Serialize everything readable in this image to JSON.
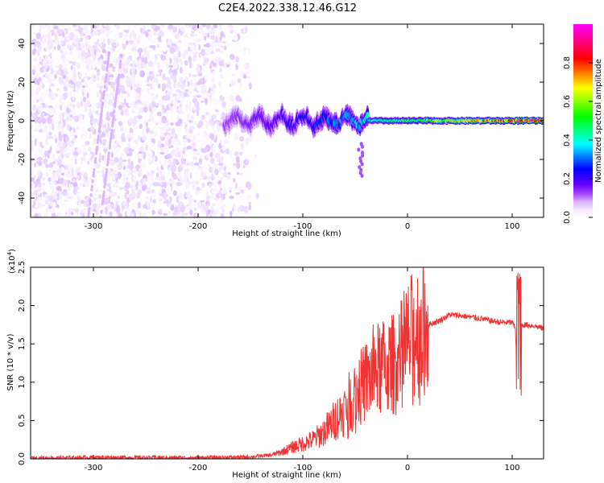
{
  "title": "C2E4.2022.338.12.46.G12",
  "chart_data": [
    {
      "type": "heatmap",
      "xlabel": "Height of straight line (km)",
      "ylabel": "Frequency (Hz)",
      "xlim": [
        -360,
        130
      ],
      "ylim": [
        -50,
        50
      ],
      "x_ticks": [
        -300,
        -200,
        -100,
        0,
        100
      ],
      "y_ticks": [
        -40,
        -20,
        0,
        20,
        40
      ],
      "colorbar": {
        "label": "Normalized spectral amplitude",
        "range": [
          0.0,
          1.0
        ],
        "ticks": [
          0.0,
          0.2,
          0.4,
          0.6,
          0.8
        ],
        "colors": [
          "#ffffff",
          "#f5e8ff",
          "#d9b3ff",
          "#a64dff",
          "#6600ff",
          "#0000ff",
          "#00ffff",
          "#00ff00",
          "#ffff00",
          "#ff0000",
          "#ff00ff"
        ]
      },
      "features": [
        {
          "name": "noise",
          "x_range": [
            -360,
            -150
          ],
          "freq_range": [
            -50,
            50
          ],
          "amplitude": 0.1
        },
        {
          "name": "streak",
          "x_range": [
            -305,
            -285
          ],
          "freq_range": [
            -50,
            35
          ],
          "amplitude": 0.2
        },
        {
          "name": "signal",
          "x_range": [
            -175,
            130
          ],
          "center_freq_hz": 0,
          "width_hz": 8,
          "amplitude_range": [
            0.3,
            1.0
          ]
        }
      ]
    },
    {
      "type": "line",
      "xlabel": "Height of straight line (km)",
      "ylabel": "SNR (10 * v/v)",
      "y_multiplier_label": "(x10",
      "y_multiplier_exp": "4",
      "y_multiplier_close": ")",
      "xlim": [
        -360,
        130
      ],
      "ylim": [
        0,
        25000
      ],
      "x_ticks": [
        -300,
        -200,
        -100,
        0,
        100
      ],
      "y_tick_labels": [
        "0.0",
        "0.5",
        "1.0",
        "1.5",
        "2.0",
        "2.5"
      ],
      "series": [
        {
          "color": "#ee3333",
          "x": [
            -360,
            -300,
            -200,
            -150,
            -130,
            -120,
            -110,
            -100,
            -90,
            -80,
            -70,
            -60,
            -50,
            -40,
            -30,
            -20,
            -10,
            0,
            10,
            20,
            30,
            40,
            50,
            60,
            70,
            80,
            90,
            100,
            103,
            106,
            108,
            110,
            120,
            130
          ],
          "y": [
            100,
            200,
            150,
            250,
            500,
            900,
            1500,
            2000,
            2500,
            3500,
            5000,
            6500,
            8500,
            10000,
            11500,
            12000,
            12500,
            15000,
            17000,
            17500,
            18000,
            18800,
            18700,
            18500,
            18300,
            18000,
            17800,
            17800,
            17000,
            7500,
            17300,
            17500,
            17400,
            17000
          ]
        }
      ]
    }
  ]
}
